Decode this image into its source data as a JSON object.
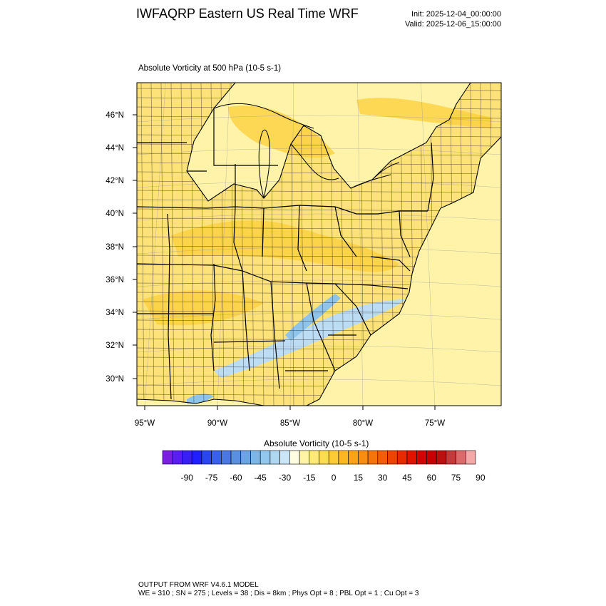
{
  "header": {
    "title": "IWFAQRP Eastern US Real Time WRF",
    "init": "Init: 2025-12-04_00:00:00",
    "valid": "Valid: 2025-12-06_15:00:00"
  },
  "map": {
    "subtitle": "Absolute Vorticity at 500 hPa   (10-5 s-1)",
    "lat_labels": [
      "46°N",
      "44°N",
      "42°N",
      "40°N",
      "38°N",
      "36°N",
      "34°N",
      "32°N",
      "30°N"
    ],
    "lon_labels": [
      "95°W",
      "90°W",
      "85°W",
      "80°W",
      "75°W"
    ],
    "colors": {
      "land_base": "#fde27a",
      "water_base": "#fef3a8",
      "positive_band": "#fbcf3a",
      "negative_band": "#bcdcf4",
      "strong_negative": "#8ec4ea",
      "boundary_line": "#000000"
    }
  },
  "colorbar": {
    "title": "Absolute Vorticity  (10-5 s-1)",
    "tick_labels": [
      "-90",
      "-75",
      "-60",
      "-45",
      "-30",
      "-15",
      "0",
      "15",
      "30",
      "45",
      "60",
      "75",
      "90"
    ],
    "colors": [
      "#7b1fe0",
      "#5a1ff0",
      "#3a1ff5",
      "#1f1fff",
      "#2a46f0",
      "#3a5fe8",
      "#4a78e2",
      "#5a8fe2",
      "#6aa4e6",
      "#7ab6ea",
      "#92c8ee",
      "#aed8f2",
      "#cbe6f6",
      "#fffde0",
      "#fff4a6",
      "#ffea78",
      "#fedc52",
      "#fdcb34",
      "#fcb81f",
      "#faa317",
      "#f88d10",
      "#f5750b",
      "#f25d06",
      "#ee4303",
      "#e82a01",
      "#e01300",
      "#d60000",
      "#c80000",
      "#bc1010",
      "#c83838",
      "#dc6a6a",
      "#f4a8a8"
    ]
  },
  "footer": {
    "line1": "OUTPUT FROM WRF V4.6.1 MODEL",
    "line2": "WE = 310 ; SN = 275 ; Levels = 38 ; Dis = 8km ; Phys Opt = 8 ; PBL Opt = 1 ; Cu Opt = 3"
  }
}
